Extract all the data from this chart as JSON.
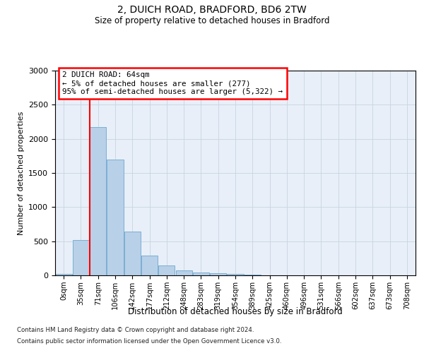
{
  "title": "2, DUICH ROAD, BRADFORD, BD6 2TW",
  "subtitle": "Size of property relative to detached houses in Bradford",
  "xlabel": "Distribution of detached houses by size in Bradford",
  "ylabel": "Number of detached properties",
  "footnote1": "Contains HM Land Registry data © Crown copyright and database right 2024.",
  "footnote2": "Contains public sector information licensed under the Open Government Licence v3.0.",
  "annotation_line1": "2 DUICH ROAD: 64sqm",
  "annotation_line2": "← 5% of detached houses are smaller (277)",
  "annotation_line3": "95% of semi-detached houses are larger (5,322) →",
  "bar_values": [
    20,
    520,
    2170,
    1700,
    640,
    290,
    150,
    75,
    45,
    30,
    20,
    15,
    5,
    5,
    5,
    5,
    5,
    5,
    5,
    5,
    5
  ],
  "bar_labels": [
    "0sqm",
    "35sqm",
    "71sqm",
    "106sqm",
    "142sqm",
    "177sqm",
    "212sqm",
    "248sqm",
    "283sqm",
    "319sqm",
    "354sqm",
    "389sqm",
    "425sqm",
    "460sqm",
    "496sqm",
    "531sqm",
    "566sqm",
    "602sqm",
    "637sqm",
    "673sqm",
    "708sqm"
  ],
  "ylim": [
    0,
    3000
  ],
  "yticks": [
    0,
    500,
    1000,
    1500,
    2000,
    2500,
    3000
  ],
  "bar_color": "#b8d0e8",
  "bar_edge_color": "#7aafd4",
  "redline_bar_index": 1.5,
  "background_color": "#ffffff",
  "plot_bg_color": "#e8eff8",
  "grid_color": "#c8d4e0"
}
